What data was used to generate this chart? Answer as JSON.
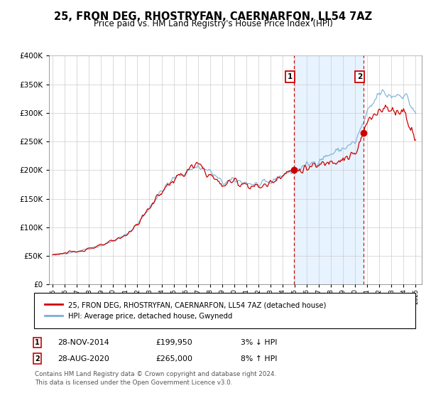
{
  "title": "25, FRON DEG, RHOSTRYFAN, CAERNARFON, LL54 7AZ",
  "subtitle": "Price paid vs. HM Land Registry's House Price Index (HPI)",
  "legend_line1": "25, FRON DEG, RHOSTRYFAN, CAERNARFON, LL54 7AZ (detached house)",
  "legend_line2": "HPI: Average price, detached house, Gwynedd",
  "annotation1_date": "28-NOV-2014",
  "annotation1_price": "£199,950",
  "annotation1_hpi": "3% ↓ HPI",
  "annotation1_year": 2014.917,
  "annotation1_value": 199950,
  "annotation2_date": "28-AUG-2020",
  "annotation2_price": "£265,000",
  "annotation2_hpi": "8% ↑ HPI",
  "annotation2_year": 2020.667,
  "annotation2_value": 265000,
  "footer": "Contains HM Land Registry data © Crown copyright and database right 2024.\nThis data is licensed under the Open Government Licence v3.0.",
  "price_line_color": "#cc0000",
  "hpi_line_color": "#7bafd4",
  "fill_color": "#ddeeff",
  "plot_bg_color": "#ffffff",
  "grid_color": "#cccccc",
  "annotation_box_color": "#cc0000",
  "vline_color": "#cc0000",
  "ylim": [
    0,
    400000
  ],
  "yticks": [
    0,
    50000,
    100000,
    150000,
    200000,
    250000,
    300000,
    350000,
    400000
  ],
  "xlim_start": 1994.7,
  "xlim_end": 2025.5
}
